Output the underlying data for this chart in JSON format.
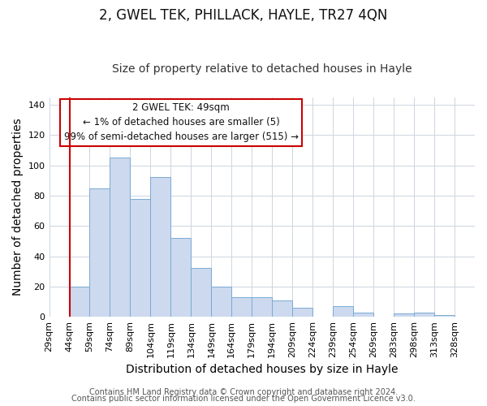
{
  "title": "2, GWEL TEK, PHILLACK, HAYLE, TR27 4QN",
  "subtitle": "Size of property relative to detached houses in Hayle",
  "xlabel": "Distribution of detached houses by size in Hayle",
  "ylabel": "Number of detached properties",
  "footer1": "Contains HM Land Registry data © Crown copyright and database right 2024.",
  "footer2": "Contains public sector information licensed under the Open Government Licence v3.0.",
  "bar_labels": [
    "29sqm",
    "44sqm",
    "59sqm",
    "74sqm",
    "89sqm",
    "104sqm",
    "119sqm",
    "134sqm",
    "149sqm",
    "164sqm",
    "179sqm",
    "194sqm",
    "209sqm",
    "224sqm",
    "239sqm",
    "254sqm",
    "269sqm",
    "283sqm",
    "298sqm",
    "313sqm",
    "328sqm"
  ],
  "bar_values": [
    0,
    20,
    85,
    105,
    78,
    92,
    52,
    32,
    20,
    13,
    13,
    11,
    6,
    0,
    7,
    3,
    0,
    2,
    3,
    1,
    0
  ],
  "bar_color": "#ccd9ee",
  "bar_edge_color": "#7aaad4",
  "ylim": [
    0,
    145
  ],
  "yticks": [
    0,
    20,
    40,
    60,
    80,
    100,
    120,
    140
  ],
  "red_line_x": 1,
  "annotation_line1": "2 GWEL TEK: 49sqm",
  "annotation_line2": "← 1% of detached houses are smaller (5)",
  "annotation_line3": "99% of semi-detached houses are larger (515) →",
  "annotation_box_color": "#ffffff",
  "annotation_box_edge": "#cc0000",
  "annotation_fontsize": 8.5,
  "title_fontsize": 12,
  "subtitle_fontsize": 10,
  "axis_label_fontsize": 10,
  "tick_fontsize": 8,
  "footer_fontsize": 7
}
